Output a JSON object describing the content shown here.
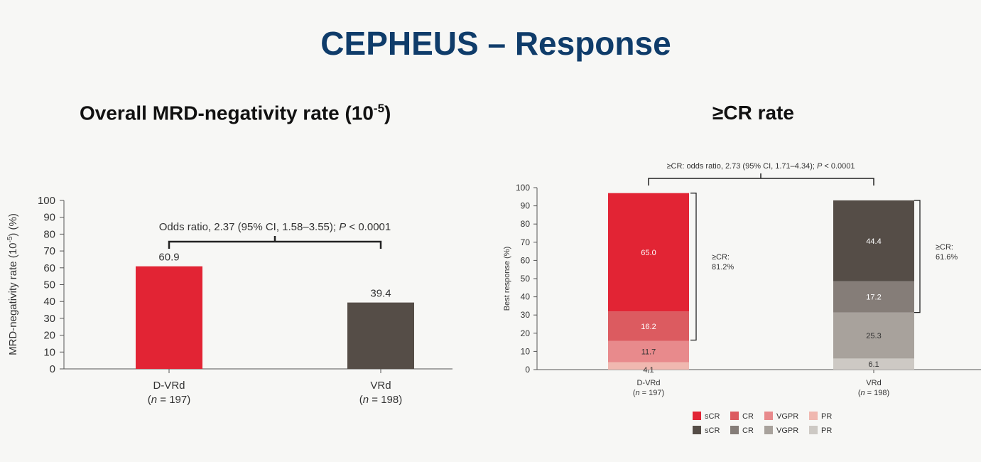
{
  "page": {
    "title": "CEPHEUS – Response"
  },
  "colors": {
    "title": "#0f3c6a",
    "dvrd_bar": "#e22434",
    "vrd_bar": "#554d47",
    "red_sCR": "#e22434",
    "red_CR": "#dc5b60",
    "red_VGPR": "#e88a8c",
    "red_PR": "#f0b8b0",
    "grey_sCR": "#554d47",
    "grey_CR": "#857d78",
    "grey_VGPR": "#a8a29c",
    "grey_PR": "#cdc9c4"
  },
  "chart_data": [
    {
      "type": "bar",
      "title": "Overall MRD-negativity rate (10-5)",
      "title_main": "Overall MRD-negativity rate (10",
      "title_sup": "-5",
      "title_end": ")",
      "ylabel_main": "MRD-negativity rate (10",
      "ylabel_sup": "-5",
      "ylabel_end": ") (%)",
      "ylim": [
        0,
        100
      ],
      "yticks": [
        0,
        10,
        20,
        30,
        40,
        50,
        60,
        70,
        80,
        90,
        100
      ],
      "categories": [
        {
          "name": "D-VRd",
          "n_prefix": "(",
          "n_italic": "n",
          "n_rest": " = 197)",
          "value": 60.9,
          "value_label": "60.9",
          "color_key": "dvrd_bar"
        },
        {
          "name": "VRd",
          "n_prefix": "(",
          "n_italic": "n",
          "n_rest": " = 198)",
          "value": 39.4,
          "value_label": "39.4",
          "color_key": "vrd_bar"
        }
      ],
      "annotation": {
        "main": "Odds ratio, 2.37 (95% CI, 1.58–3.55); ",
        "italic": "P",
        "end": " < 0.0001"
      },
      "grid": false
    },
    {
      "type": "bar",
      "subtype": "stacked",
      "title": "≥CR rate",
      "ylabel": "Best response (%)",
      "ylim": [
        0,
        100
      ],
      "yticks": [
        0,
        10,
        20,
        30,
        40,
        50,
        60,
        70,
        80,
        90,
        100
      ],
      "categories": [
        {
          "name": "D-VRd",
          "n_prefix": "(",
          "n_italic": "n",
          "n_rest": " = 197)",
          "segments": [
            {
              "level": "PR",
              "value": 4.1,
              "label": "4.1",
              "color_key": "red_PR",
              "text_color": "#333333"
            },
            {
              "level": "VGPR",
              "value": 11.7,
              "label": "11.7",
              "color_key": "red_VGPR",
              "text_color": "#333333"
            },
            {
              "level": "CR",
              "value": 16.2,
              "label": "16.2",
              "color_key": "red_CR",
              "text_color": "#ffffff"
            },
            {
              "level": "sCR",
              "value": 65.0,
              "label": "65.0",
              "color_key": "red_sCR",
              "text_color": "#ffffff"
            }
          ],
          "cr_bracket": {
            "label_line1": "≥CR:",
            "label_line2": "81.2%",
            "from": 16.2,
            "to": 97.0
          }
        },
        {
          "name": "VRd",
          "n_prefix": "(",
          "n_italic": "n",
          "n_rest": " = 198)",
          "segments": [
            {
              "level": "PR",
              "value": 6.1,
              "label": "6.1",
              "color_key": "grey_PR",
              "text_color": "#333333"
            },
            {
              "level": "VGPR",
              "value": 25.3,
              "label": "25.3",
              "color_key": "grey_VGPR",
              "text_color": "#333333"
            },
            {
              "level": "CR",
              "value": 17.2,
              "label": "17.2",
              "color_key": "grey_CR",
              "text_color": "#ffffff"
            },
            {
              "level": "sCR",
              "value": 44.4,
              "label": "44.4",
              "color_key": "grey_sCR",
              "text_color": "#ffffff"
            }
          ],
          "cr_bracket": {
            "label_line1": "≥CR:",
            "label_line2": "61.6%",
            "from": 31.4,
            "to": 93.0
          }
        }
      ],
      "annotation": {
        "main": "≥CR: odds ratio, 2.73 (95% CI, 1.71–4.34); ",
        "italic": "P",
        "end": " < 0.0001"
      },
      "legend": {
        "placement": "bottom",
        "rows": [
          [
            {
              "label": "sCR",
              "color_key": "red_sCR"
            },
            {
              "label": "CR",
              "color_key": "red_CR"
            },
            {
              "label": "VGPR",
              "color_key": "red_VGPR"
            },
            {
              "label": "PR",
              "color_key": "red_PR"
            }
          ],
          [
            {
              "label": "sCR",
              "color_key": "grey_sCR"
            },
            {
              "label": "CR",
              "color_key": "grey_CR"
            },
            {
              "label": "VGPR",
              "color_key": "grey_VGPR"
            },
            {
              "label": "PR",
              "color_key": "grey_PR"
            }
          ]
        ]
      },
      "grid": false
    }
  ]
}
